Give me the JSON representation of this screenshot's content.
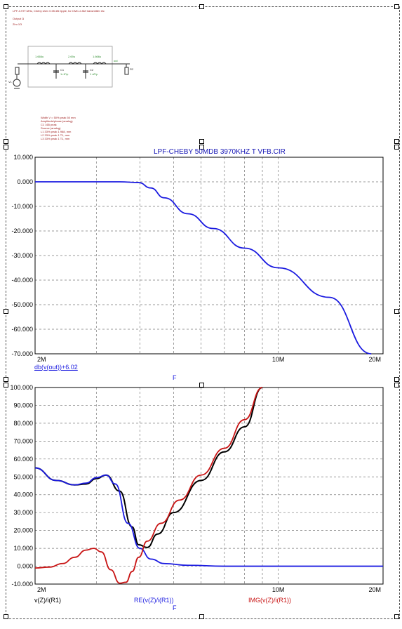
{
  "header_notes": {
    "line1": "LPF-3.97T.MHz, Cheby shev 0.05 dB ripple, for CMC-2 AM transmitter etc",
    "line2": "Output Ω",
    "line3": "Zin=1Ω"
  },
  "schematic": {
    "inductor_values": [
      "1.666u",
      "2.69u",
      "1.666u"
    ],
    "capacitor_labels": [
      "C1",
      "C2"
    ],
    "capacitor_values": [
      "1 nF/p",
      "1 nF/p"
    ],
    "load_label": "R2",
    "source_label": "V1",
    "node_label": "out"
  },
  "notes_block": [
    "Width V = 50% peak 50 mm",
    "Amplitude/phase (analog)",
    "C1 165 peak",
    "Source (analog)",
    "L1 33% peak 1 968, mm",
    "L2 33% peak 1 T1, mm",
    "L3 33% peak 1 T1, mm"
  ],
  "colors": {
    "blue": "#1a1ae0",
    "black": "#000000",
    "red": "#c81414",
    "title": "#1515b5"
  },
  "chart_data": [
    {
      "type": "line",
      "title": "LPF-CHEBY 50MDB 3970KHZ T VFB.CIR",
      "xscale": "log",
      "xlim": [
        2000000,
        20000000
      ],
      "ylim": [
        -70,
        10
      ],
      "x_ticks": [
        "2M",
        "10M",
        "20M"
      ],
      "y_ticks": [
        "10.000",
        "0.000",
        "-10.000",
        "-20.000",
        "-30.000",
        "-40.000",
        "-50.000",
        "-60.000",
        "-70.000"
      ],
      "xlabel": "F",
      "grid": true,
      "series": [
        {
          "name": "db(v(out))+6.02",
          "x": [
            2000000,
            3000000,
            3500000,
            3970000,
            4300000,
            4700000,
            5500000,
            6500000,
            8000000,
            10000000,
            14000000,
            18500000
          ],
          "y": [
            0,
            0,
            0,
            -0.3,
            -2.5,
            -6.5,
            -13,
            -19,
            -27,
            -35,
            -47,
            -70
          ]
        }
      ]
    },
    {
      "type": "line",
      "xscale": "log",
      "xlim": [
        2000000,
        20000000
      ],
      "ylim": [
        -10,
        100
      ],
      "x_ticks": [
        "2M",
        "10M",
        "20M"
      ],
      "y_ticks": [
        "100.000",
        "90.000",
        "80.000",
        "70.000",
        "60.000",
        "50.000",
        "40.000",
        "30.000",
        "20.000",
        "10.000",
        "0.000",
        "-10.000"
      ],
      "xlabel": "F",
      "grid": true,
      "series": [
        {
          "name": "v(Z)/i(R1)",
          "x": [
            2000000,
            2300000,
            2600000,
            2800000,
            3000000,
            3200000,
            3500000,
            3800000,
            3970000,
            4200000,
            4500000,
            5000000,
            6000000,
            7000000,
            8000000,
            9000000
          ],
          "y": [
            55,
            48,
            45.5,
            46,
            49,
            51,
            42,
            22,
            12,
            10.5,
            18,
            30,
            48,
            64,
            78,
            100
          ]
        },
        {
          "name": "RE(v(Z)/i(R1))",
          "x": [
            2000000,
            2300000,
            2600000,
            2800000,
            3000000,
            3200000,
            3400000,
            3700000,
            4000000,
            4300000,
            4700000,
            5500000,
            7000000,
            10000000,
            20000000
          ],
          "y": [
            55,
            48,
            45.5,
            46.5,
            49.5,
            51,
            46,
            24,
            10,
            4,
            1.5,
            0.5,
            0,
            0,
            0
          ]
        },
        {
          "name": "IMG(v(Z)/i(R1))",
          "x": [
            2000000,
            2200000,
            2400000,
            2600000,
            2800000,
            2950000,
            3100000,
            3300000,
            3500000,
            3650000,
            3800000,
            3970000,
            4200000,
            4600000,
            5200000,
            6000000,
            7000000,
            8000000,
            9000000
          ],
          "y": [
            -1,
            -0.5,
            1.5,
            5,
            9,
            10,
            8,
            -2,
            -9.5,
            -9,
            -3,
            5,
            14,
            24,
            37,
            51,
            66,
            82,
            100
          ]
        }
      ]
    }
  ]
}
